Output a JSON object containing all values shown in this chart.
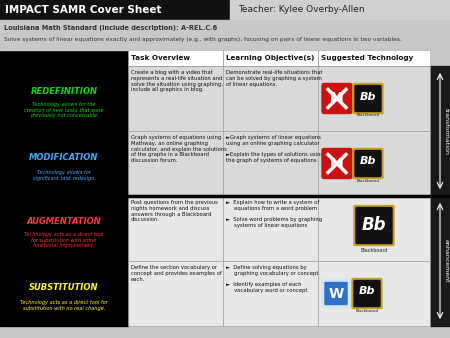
{
  "title_left": "IMPACT SAMR Cover Sheet",
  "title_right": "Teacher: Kylee Overby-Allen",
  "standard_label": "Louisiana Math Standard (include description): A-REL.C.6",
  "standard_desc": "Solve systems of linear equations exactly and approximately (e.g., with graphs), focusing on pairs of linear equations in two variables.",
  "col_headers": [
    "Task Overview",
    "Learning Objective(s)",
    "Suggested Technology"
  ],
  "rows": [
    {
      "level": "REDEFINITION",
      "level_sub": "Technology allows for the\ncreation of new tasks that were\npreviously not conceivable.",
      "level_color": "#00dd00",
      "task": "Create a blog with a video that\nrepresents a real-life situation and\nsolve the situation using graphing.\ninclude all graphics in blog.",
      "objective": "Demonstrate real-life situations that\ncan be solved by graphing a system\nof linear equations.",
      "tech": [
        "mathway",
        "blackboard"
      ],
      "row_bg": "#d9d9d9"
    },
    {
      "level": "MODIFICATION",
      "level_sub": "Technology allows for\nsignificant task redesign.",
      "level_color": "#44aaff",
      "task": "Graph systems of equations using\nMathway, an online graphing\ncalculator, and explain the solutions\nof the graphs in a Blackboard\ndiscussion forum.",
      "objective": "►Graph systems of linear equations\nusing an online graphing calculator\n\n►Explain the types of solutions using\nthe graph of systems of equations",
      "tech": [
        "mathway",
        "blackboard"
      ],
      "row_bg": "#d9d9d9"
    },
    {
      "level": "AUGMENTATION",
      "level_sub": "Technology acts as a direct tool\nfor substitution with some\nfunctional improvement.",
      "level_color": "#ff3333",
      "task": "Post questions from the previous\nnights homework and discuss\nanswers through a Blackboard\ndiscussion.",
      "objective": "►  Explain how to write a system of\n     equations from a word problem\n\n►  Solve word problems by graphing\n     systems of linear equations",
      "tech": [
        "blackboard"
      ],
      "row_bg": "#e8e8e8"
    },
    {
      "level": "SUBSTITUTION",
      "level_sub": "Technology acts as a direct tool for\nsubstitution with no real change.",
      "level_color": "#ffff00",
      "task": "Define the section vocabulary or\nconcept and provides examples of\neach.",
      "objective": "►  Define solving equations by\n     graphing vocabulary or concept\n\n►  Identify examples of each\n     vocabulary word or concept",
      "tech": [
        "word",
        "blackboard"
      ],
      "row_bg": "#e8e8e8"
    }
  ],
  "transformation_label": "transformation",
  "enhancement_label": "enhancement"
}
